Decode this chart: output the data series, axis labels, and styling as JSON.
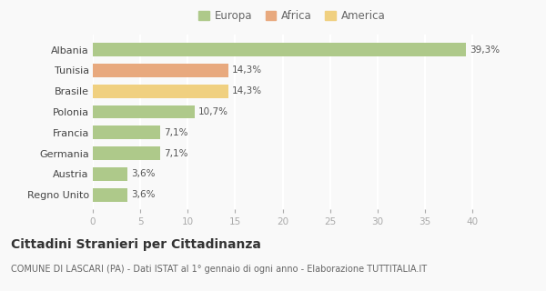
{
  "categories": [
    "Albania",
    "Tunisia",
    "Brasile",
    "Polonia",
    "Francia",
    "Germania",
    "Austria",
    "Regno Unito"
  ],
  "values": [
    39.3,
    14.3,
    14.3,
    10.7,
    7.1,
    7.1,
    3.6,
    3.6
  ],
  "labels": [
    "39,3%",
    "14,3%",
    "14,3%",
    "10,7%",
    "7,1%",
    "7,1%",
    "3,6%",
    "3,6%"
  ],
  "colors": [
    "#aec98a",
    "#e8a97e",
    "#f0d080",
    "#aec98a",
    "#aec98a",
    "#aec98a",
    "#aec98a",
    "#aec98a"
  ],
  "legend_labels": [
    "Europa",
    "Africa",
    "America"
  ],
  "legend_colors": [
    "#aec98a",
    "#e8a97e",
    "#f0d080"
  ],
  "xlim": [
    0,
    42
  ],
  "xticks": [
    0,
    5,
    10,
    15,
    20,
    25,
    30,
    35,
    40
  ],
  "title": "Cittadini Stranieri per Cittadinanza",
  "subtitle": "COMUNE DI LASCARI (PA) - Dati ISTAT al 1° gennaio di ogni anno - Elaborazione TUTTITALIA.IT",
  "background_color": "#f9f9f9",
  "grid_color": "#ffffff",
  "label_fontsize": 7.5,
  "ytick_fontsize": 8,
  "xtick_fontsize": 7.5,
  "title_fontsize": 10,
  "subtitle_fontsize": 7,
  "legend_fontsize": 8.5
}
